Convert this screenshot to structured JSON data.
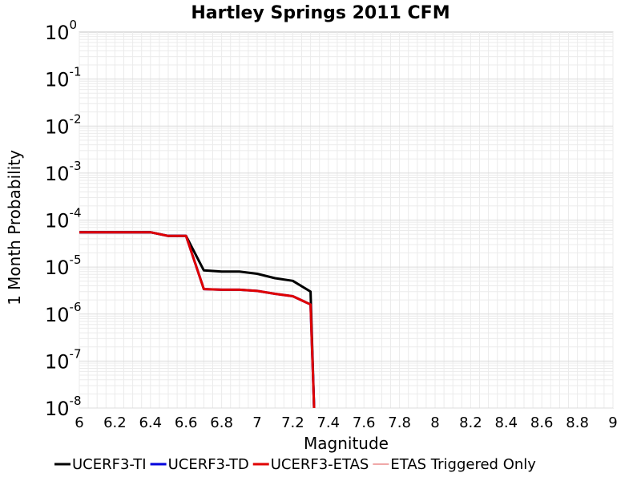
{
  "chart_data": {
    "type": "line",
    "title": "Hartley Springs 2011 CFM",
    "xlabel": "Magnitude",
    "ylabel": "1 Month Probability",
    "xlim": [
      6,
      9
    ],
    "ylim": [
      1e-08,
      1
    ],
    "yscale": "log",
    "grid": true,
    "legend_position": "bottom",
    "x_ticks": [
      "6",
      "6.2",
      "6.4",
      "6.6",
      "6.8",
      "7",
      "7.2",
      "7.4",
      "7.6",
      "7.8",
      "8",
      "8.2",
      "8.4",
      "8.6",
      "8.8",
      "9"
    ],
    "y_ticks": [
      {
        "base": "10",
        "exp": "0"
      },
      {
        "base": "10",
        "exp": "-1"
      },
      {
        "base": "10",
        "exp": "-2"
      },
      {
        "base": "10",
        "exp": "-3"
      },
      {
        "base": "10",
        "exp": "-4"
      },
      {
        "base": "10",
        "exp": "-5"
      },
      {
        "base": "10",
        "exp": "-6"
      },
      {
        "base": "10",
        "exp": "-7"
      },
      {
        "base": "10",
        "exp": "-8"
      }
    ],
    "series": [
      {
        "name": "UCERF3-TI",
        "color": "#000000",
        "width": 3,
        "x": [
          6.0,
          6.1,
          6.2,
          6.3,
          6.4,
          6.5,
          6.6,
          6.7,
          6.8,
          6.9,
          7.0,
          7.1,
          7.2,
          7.3,
          7.32
        ],
        "y": [
          5.5e-05,
          5.5e-05,
          5.5e-05,
          5.5e-05,
          5.5e-05,
          4.6e-05,
          4.6e-05,
          8.5e-06,
          8e-06,
          8e-06,
          7.2e-06,
          5.8e-06,
          5.1e-06,
          3e-06,
          1e-08
        ]
      },
      {
        "name": "UCERF3-TD",
        "color": "#0000dd",
        "width": 3,
        "x": [
          6.0,
          6.1,
          6.2,
          6.3,
          6.4,
          6.5,
          6.6,
          6.7,
          6.8,
          6.9,
          7.0,
          7.1,
          7.2,
          7.3,
          7.32
        ],
        "y": [
          5.5e-05,
          5.5e-05,
          5.5e-05,
          5.5e-05,
          5.5e-05,
          4.6e-05,
          4.6e-05,
          3.4e-06,
          3.3e-06,
          3.3e-06,
          3.1e-06,
          2.7e-06,
          2.4e-06,
          1.6e-06,
          1e-08
        ]
      },
      {
        "name": "UCERF3-ETAS",
        "color": "#e00000",
        "width": 3,
        "x": [
          6.0,
          6.1,
          6.2,
          6.3,
          6.4,
          6.5,
          6.6,
          6.7,
          6.8,
          6.9,
          7.0,
          7.1,
          7.2,
          7.3,
          7.32
        ],
        "y": [
          5.5e-05,
          5.5e-05,
          5.5e-05,
          5.5e-05,
          5.5e-05,
          4.6e-05,
          4.6e-05,
          3.4e-06,
          3.3e-06,
          3.3e-06,
          3.1e-06,
          2.7e-06,
          2.4e-06,
          1.6e-06,
          1e-08
        ]
      },
      {
        "name": "ETAS Triggered Only",
        "color": "#e05050",
        "width": 1,
        "x": [],
        "y": []
      }
    ]
  }
}
